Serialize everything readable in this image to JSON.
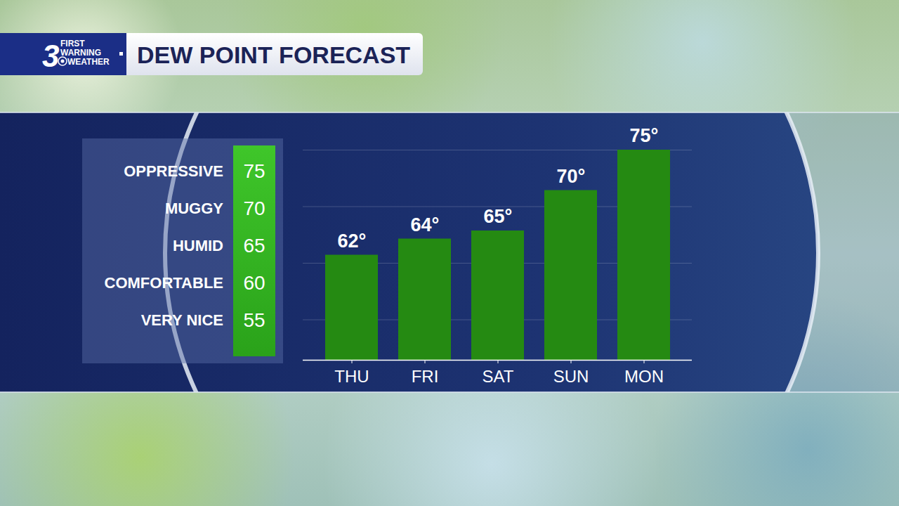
{
  "chart_data": {
    "type": "bar",
    "title": "DEW POINT FORECAST",
    "logo": {
      "number": "3",
      "lines": [
        "FIRST",
        "WARNING",
        "WEATHER"
      ]
    },
    "categories": [
      "THU",
      "FRI",
      "SAT",
      "SUN",
      "MON"
    ],
    "values": [
      62,
      64,
      65,
      70,
      75
    ],
    "value_labels": [
      "62°",
      "64°",
      "65°",
      "70°",
      "75°"
    ],
    "data_labels": true,
    "color": "#258a12",
    "ylim": [
      49,
      75
    ],
    "yticks": [
      49,
      54,
      61,
      68,
      75
    ],
    "grid": true,
    "tick_labels": "x",
    "comfort_scale": {
      "labels": [
        "OPPRESSIVE",
        "MUGGY",
        "HUMID",
        "COMFORTABLE",
        "VERY NICE"
      ],
      "values": [
        75,
        70,
        65,
        60,
        55
      ]
    }
  }
}
